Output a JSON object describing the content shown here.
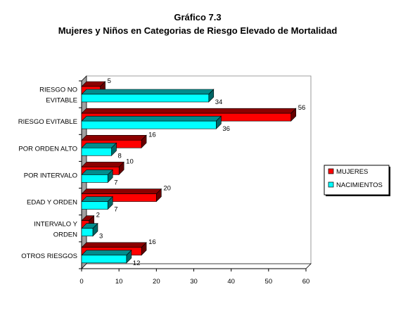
{
  "chart_data": {
    "type": "bar",
    "orientation": "horizontal",
    "title": "Gráfico 7.3",
    "subtitle": "Mujeres y Niños en Categorias de Riesgo Elevado de Mortalidad",
    "categories": [
      [
        "RIESGO NO",
        "EVITABLE"
      ],
      [
        "RIESGO EVITABLE"
      ],
      [
        "POR ORDEN ALTO"
      ],
      [
        "POR INTERVALO"
      ],
      [
        "EDAD Y ORDEN"
      ],
      [
        "INTERVALO Y",
        "ORDEN"
      ],
      [
        "OTROS RIESGOS"
      ]
    ],
    "series": [
      {
        "name": "MUJERES",
        "values": [
          5,
          56,
          16,
          10,
          20,
          2,
          16
        ],
        "color": "#ff0000"
      },
      {
        "name": "NACIMIENTOS",
        "values": [
          34,
          36,
          8,
          7,
          7,
          3,
          12
        ],
        "color": "#00ffff"
      }
    ],
    "xlim": [
      0,
      60
    ],
    "xticks": [
      "0",
      "10",
      "20",
      "30",
      "40",
      "50",
      "60"
    ],
    "grid": false,
    "legend": "right",
    "style": "3d"
  }
}
